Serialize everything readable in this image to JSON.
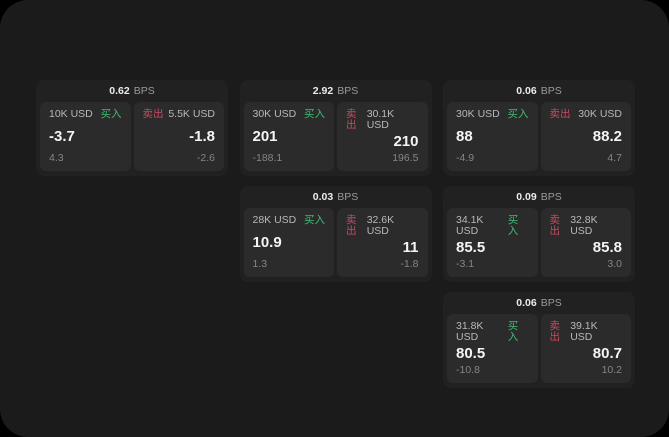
{
  "labels": {
    "bps_unit": "BPS",
    "buy": "买入",
    "sell": "卖出"
  },
  "colors": {
    "outer_background": "#000000",
    "surface_background": "#1b1b1b",
    "card_background": "#212121",
    "panel_background": "#2b2b2b",
    "buy_green": "#3dbd74",
    "sell_red": "#c54b61"
  },
  "cards": [
    {
      "bps": "0.62",
      "buy": {
        "amount": "10K USD",
        "value": "-3.7",
        "change": "4.3"
      },
      "sell": {
        "amount": "5.5K USD",
        "value": "-1.8",
        "change": "-2.6"
      }
    },
    {
      "bps": "2.92",
      "buy": {
        "amount": "30K USD",
        "value": "201",
        "change": "-188.1"
      },
      "sell": {
        "amount": "30.1K USD",
        "value": "210",
        "change": "196.5"
      }
    },
    {
      "bps": "0.06",
      "buy": {
        "amount": "30K USD",
        "value": "88",
        "change": "-4.9"
      },
      "sell": {
        "amount": "30K USD",
        "value": "88.2",
        "change": "4.7"
      }
    },
    {
      "bps": "0.03",
      "buy": {
        "amount": "28K USD",
        "value": "10.9",
        "change": "1.3"
      },
      "sell": {
        "amount": "32.6K USD",
        "value": "11",
        "change": "-1.8"
      }
    },
    {
      "bps": "0.09",
      "buy": {
        "amount": "34.1K USD",
        "value": "85.5",
        "change": "-3.1"
      },
      "sell": {
        "amount": "32.8K USD",
        "value": "85.8",
        "change": "3.0"
      }
    },
    {
      "bps": "0.06",
      "buy": {
        "amount": "31.8K USD",
        "value": "80.5",
        "change": "-10.8"
      },
      "sell": {
        "amount": "39.1K USD",
        "value": "80.7",
        "change": "10.2"
      }
    }
  ]
}
